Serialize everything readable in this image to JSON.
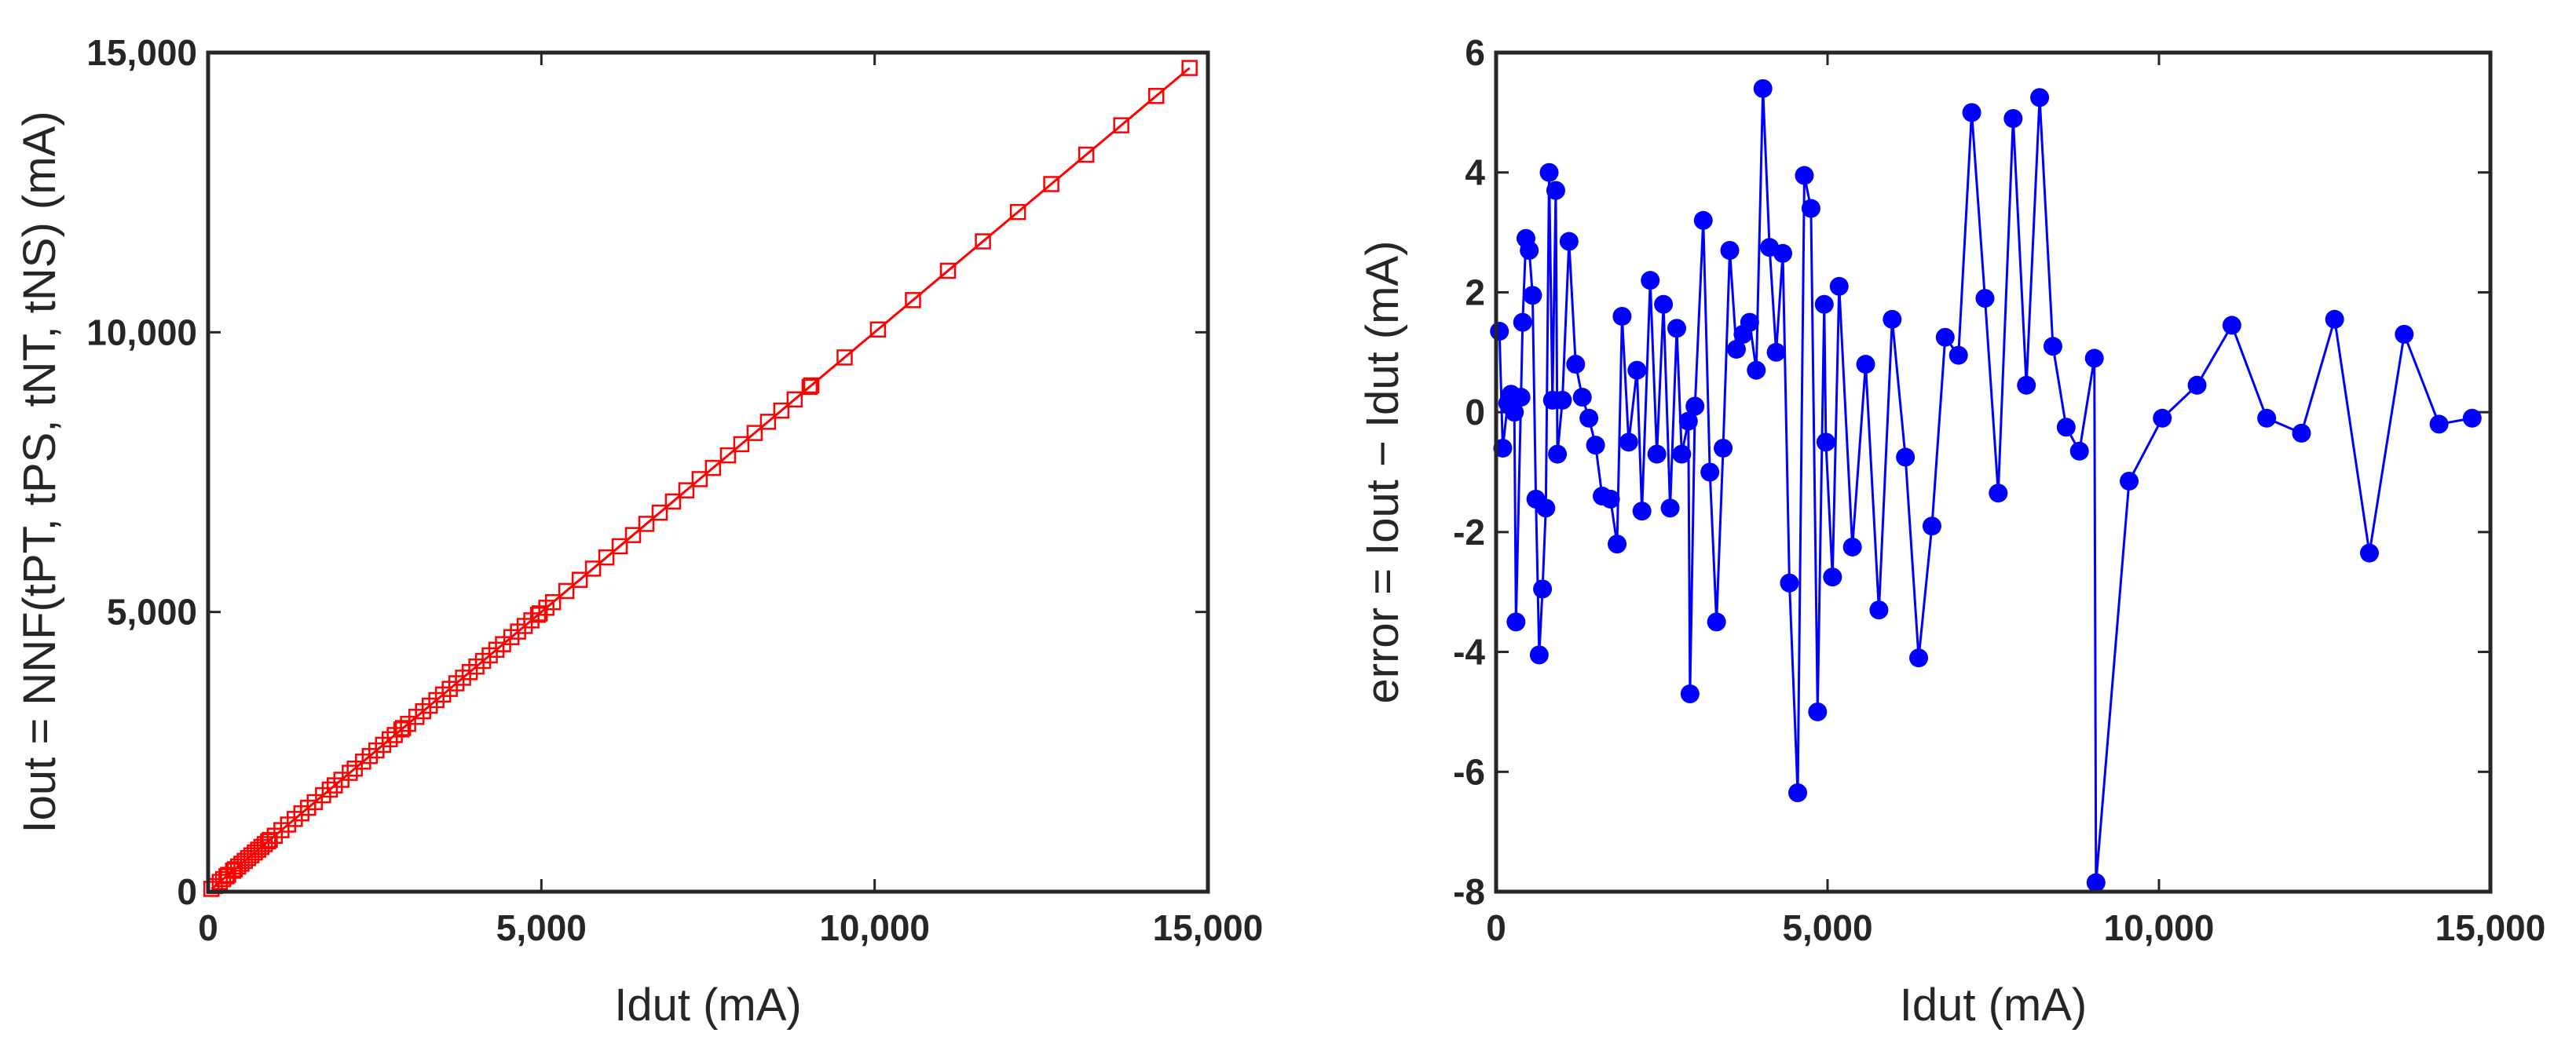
{
  "chart_data": [
    {
      "type": "line",
      "marker": "square",
      "xlabel": "Idut (mA)",
      "ylabel": "Iout = NNF(tPT, tPS, tNT, tNS) (mA)",
      "xlim": [
        0,
        15000
      ],
      "ylim": [
        0,
        15000
      ],
      "xticks": [
        0,
        {
          "value": 5000,
          "label": "5,000"
        },
        {
          "value": 10000,
          "label": "10,000"
        },
        {
          "value": 15000,
          "label": "15,000"
        }
      ],
      "yticks": [
        0,
        {
          "value": 5000,
          "label": "5,000"
        },
        {
          "value": 10000,
          "label": "10,000"
        },
        {
          "value": 15000,
          "label": "15,000"
        }
      ],
      "series": [
        {
          "color": "#ff0000",
          "x": [
            50,
            100,
            175,
            225,
            275,
            300,
            375,
            400,
            450,
            500,
            550,
            600,
            650,
            700,
            750,
            800,
            850,
            900,
            925,
            1000,
            1100,
            1200,
            1300,
            1400,
            1500,
            1600,
            1725,
            1825,
            1900,
            2000,
            2125,
            2200,
            2325,
            2425,
            2525,
            2625,
            2725,
            2800,
            2900,
            2925,
            3000,
            3125,
            3225,
            3325,
            3425,
            3525,
            3625,
            3725,
            3825,
            3925,
            4025,
            4125,
            4225,
            4325,
            4425,
            4550,
            4650,
            4750,
            4850,
            4950,
            4975,
            5075,
            5175,
            5375,
            5575,
            5775,
            5975,
            6175,
            6375,
            6575,
            6775,
            6975,
            7175,
            7375,
            7575,
            7800,
            8000,
            8200,
            8400,
            8600,
            8800,
            9025,
            9050,
            9550,
            10050,
            10575,
            11100,
            11625,
            12150,
            12650,
            13175,
            13700,
            14225,
            14725
          ],
          "values": [
            50,
            100,
            175,
            225,
            275,
            300,
            375,
            400,
            450,
            500,
            550,
            600,
            650,
            700,
            750,
            800,
            850,
            900,
            925,
            1000,
            1100,
            1200,
            1300,
            1400,
            1500,
            1600,
            1725,
            1825,
            1900,
            2000,
            2125,
            2200,
            2325,
            2425,
            2525,
            2625,
            2725,
            2800,
            2900,
            2925,
            3000,
            3125,
            3225,
            3325,
            3425,
            3525,
            3625,
            3725,
            3825,
            3925,
            4025,
            4125,
            4225,
            4325,
            4425,
            4550,
            4650,
            4750,
            4850,
            4950,
            4975,
            5075,
            5175,
            5375,
            5575,
            5775,
            5975,
            6175,
            6375,
            6575,
            6775,
            6975,
            7175,
            7375,
            7575,
            7800,
            8000,
            8200,
            8400,
            8600,
            8800,
            9025,
            9050,
            9550,
            10050,
            10575,
            11100,
            11625,
            12150,
            12650,
            13175,
            13700,
            14225,
            14725
          ]
        }
      ]
    },
    {
      "type": "line",
      "marker": "circle",
      "xlabel": "Idut (mA)",
      "ylabel": "error = Iout − Idut (mA)",
      "xlim": [
        0,
        15000
      ],
      "ylim": [
        -8,
        6
      ],
      "xticks": [
        0,
        {
          "value": 5000,
          "label": "5,000"
        },
        {
          "value": 10000,
          "label": "10,000"
        },
        {
          "value": 15000,
          "label": "15,000"
        }
      ],
      "yticks": [
        6,
        4,
        2,
        0,
        -2,
        -4,
        -6,
        -8
      ],
      "series": [
        {
          "color": "#0000ff",
          "x": [
            50,
            100,
            175,
            225,
            275,
            300,
            375,
            400,
            450,
            500,
            550,
            600,
            650,
            700,
            750,
            800,
            850,
            900,
            925,
            1000,
            1100,
            1200,
            1300,
            1400,
            1500,
            1600,
            1725,
            1825,
            1900,
            2000,
            2125,
            2200,
            2325,
            2425,
            2525,
            2625,
            2725,
            2800,
            2900,
            2925,
            3000,
            3125,
            3225,
            3325,
            3425,
            3525,
            3625,
            3725,
            3825,
            3925,
            4025,
            4125,
            4225,
            4325,
            4425,
            4550,
            4650,
            4750,
            4850,
            4950,
            4975,
            5075,
            5175,
            5375,
            5575,
            5775,
            5975,
            6175,
            6375,
            6575,
            6775,
            6975,
            7175,
            7375,
            7575,
            7800,
            8000,
            8200,
            8400,
            8600,
            8800,
            9025,
            9050,
            9550,
            10050,
            10575,
            11100,
            11625,
            12150,
            12650,
            13175,
            13700,
            14225,
            14725
          ],
          "values": [
            1.35,
            -0.6,
            0.15,
            0.3,
            0,
            -3.5,
            0.25,
            1.5,
            2.9,
            2.7,
            1.95,
            -1.45,
            -4.05,
            -2.95,
            -1.6,
            4.0,
            0.2,
            3.7,
            -0.7,
            0.2,
            2.85,
            0.8,
            0.25,
            -0.1,
            -0.55,
            -1.4,
            -1.45,
            -2.2,
            1.6,
            -0.5,
            0.7,
            -1.65,
            2.2,
            -0.7,
            1.8,
            -1.6,
            1.4,
            -0.7,
            -0.15,
            -4.7,
            0.1,
            3.2,
            -1.0,
            -3.5,
            -0.6,
            2.7,
            1.05,
            1.3,
            1.5,
            0.7,
            5.4,
            2.75,
            1.0,
            2.65,
            -2.85,
            -6.35,
            3.95,
            3.4,
            -5.0,
            1.8,
            -0.5,
            -2.75,
            2.1,
            -2.25,
            0.8,
            -3.3,
            1.55,
            -0.75,
            -4.1,
            -1.9,
            1.25,
            0.95,
            5.0,
            1.9,
            -1.35,
            4.9,
            0.45,
            5.25,
            1.1,
            -0.25,
            -0.65,
            0.9,
            -7.85,
            -1.15,
            -0.1,
            0.45,
            1.45,
            -0.1,
            -0.35,
            1.55,
            -2.35,
            1.3,
            -0.2,
            -0.1
          ]
        }
      ]
    }
  ]
}
